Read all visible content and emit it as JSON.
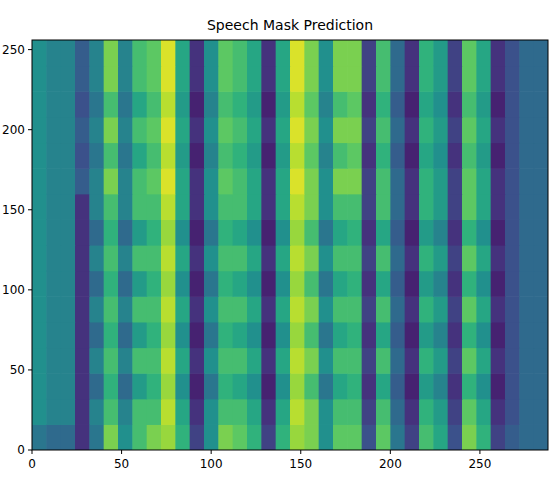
{
  "chart_data": {
    "type": "heatmap",
    "title": "Speech Mask Prediction",
    "xlim": [
      0,
      288
    ],
    "ylim": [
      0,
      256
    ],
    "xticks": [
      0,
      50,
      100,
      150,
      200,
      250
    ],
    "yticks": [
      0,
      50,
      100,
      150,
      200,
      250
    ],
    "color": "viridis",
    "zlim": [
      0,
      1
    ],
    "x_edges": [
      0,
      8,
      16,
      24,
      32,
      40,
      48,
      56,
      64,
      72,
      80,
      88,
      96,
      104,
      112,
      120,
      128,
      136,
      144,
      152,
      160,
      168,
      176,
      184,
      192,
      200,
      208,
      216,
      224,
      232,
      240,
      248,
      256,
      264,
      272,
      280,
      288
    ],
    "y_edges": [
      0,
      16,
      32,
      48,
      64,
      80,
      96,
      112,
      128,
      144,
      160,
      176,
      192,
      208,
      224,
      240,
      256
    ],
    "values": [
      [
        0.4,
        0.35,
        0.35,
        0.15,
        0.4,
        0.8,
        0.5,
        0.7,
        0.8,
        0.85,
        0.65,
        0.2,
        0.5,
        0.8,
        0.75,
        0.65,
        0.2,
        0.65,
        0.85,
        0.8,
        0.5,
        0.75,
        0.75,
        0.25,
        0.75,
        0.4,
        0.2,
        0.7,
        0.6,
        0.25,
        0.8,
        0.65,
        0.2,
        0.3,
        0.35,
        0.35
      ],
      [
        0.5,
        0.45,
        0.45,
        0.15,
        0.45,
        0.7,
        0.45,
        0.7,
        0.7,
        0.9,
        0.6,
        0.15,
        0.5,
        0.7,
        0.7,
        0.6,
        0.15,
        0.6,
        0.9,
        0.8,
        0.5,
        0.7,
        0.7,
        0.2,
        0.7,
        0.35,
        0.15,
        0.65,
        0.55,
        0.2,
        0.75,
        0.6,
        0.15,
        0.25,
        0.35,
        0.35
      ],
      [
        0.5,
        0.45,
        0.45,
        0.15,
        0.35,
        0.65,
        0.35,
        0.55,
        0.65,
        0.85,
        0.5,
        0.1,
        0.4,
        0.65,
        0.6,
        0.5,
        0.1,
        0.5,
        0.85,
        0.7,
        0.4,
        0.6,
        0.65,
        0.15,
        0.6,
        0.3,
        0.1,
        0.55,
        0.45,
        0.15,
        0.65,
        0.5,
        0.1,
        0.25,
        0.35,
        0.35
      ],
      [
        0.5,
        0.45,
        0.45,
        0.15,
        0.45,
        0.7,
        0.45,
        0.7,
        0.7,
        0.9,
        0.6,
        0.15,
        0.5,
        0.7,
        0.7,
        0.6,
        0.15,
        0.6,
        0.9,
        0.8,
        0.5,
        0.7,
        0.7,
        0.2,
        0.7,
        0.35,
        0.15,
        0.65,
        0.55,
        0.2,
        0.75,
        0.6,
        0.15,
        0.25,
        0.35,
        0.35
      ],
      [
        0.5,
        0.45,
        0.45,
        0.15,
        0.35,
        0.65,
        0.35,
        0.55,
        0.65,
        0.85,
        0.5,
        0.1,
        0.4,
        0.65,
        0.6,
        0.5,
        0.1,
        0.5,
        0.85,
        0.7,
        0.4,
        0.6,
        0.65,
        0.15,
        0.6,
        0.3,
        0.1,
        0.55,
        0.45,
        0.15,
        0.65,
        0.5,
        0.1,
        0.25,
        0.35,
        0.35
      ],
      [
        0.5,
        0.45,
        0.45,
        0.15,
        0.45,
        0.7,
        0.45,
        0.7,
        0.7,
        0.9,
        0.6,
        0.15,
        0.5,
        0.7,
        0.7,
        0.6,
        0.15,
        0.6,
        0.9,
        0.8,
        0.5,
        0.7,
        0.7,
        0.2,
        0.7,
        0.35,
        0.15,
        0.65,
        0.55,
        0.2,
        0.75,
        0.6,
        0.15,
        0.25,
        0.35,
        0.35
      ],
      [
        0.5,
        0.45,
        0.45,
        0.15,
        0.35,
        0.65,
        0.35,
        0.55,
        0.65,
        0.85,
        0.5,
        0.1,
        0.4,
        0.65,
        0.6,
        0.5,
        0.1,
        0.5,
        0.85,
        0.7,
        0.4,
        0.6,
        0.65,
        0.15,
        0.6,
        0.3,
        0.1,
        0.55,
        0.45,
        0.15,
        0.65,
        0.5,
        0.1,
        0.25,
        0.35,
        0.35
      ],
      [
        0.5,
        0.45,
        0.45,
        0.15,
        0.45,
        0.7,
        0.45,
        0.7,
        0.7,
        0.9,
        0.6,
        0.15,
        0.5,
        0.7,
        0.7,
        0.6,
        0.15,
        0.6,
        0.9,
        0.8,
        0.5,
        0.7,
        0.7,
        0.2,
        0.7,
        0.35,
        0.15,
        0.65,
        0.55,
        0.2,
        0.75,
        0.6,
        0.15,
        0.25,
        0.35,
        0.35
      ],
      [
        0.5,
        0.45,
        0.45,
        0.15,
        0.35,
        0.65,
        0.35,
        0.55,
        0.65,
        0.85,
        0.5,
        0.1,
        0.4,
        0.65,
        0.6,
        0.5,
        0.1,
        0.5,
        0.85,
        0.7,
        0.4,
        0.6,
        0.65,
        0.15,
        0.6,
        0.3,
        0.1,
        0.55,
        0.45,
        0.15,
        0.65,
        0.5,
        0.1,
        0.25,
        0.35,
        0.35
      ],
      [
        0.5,
        0.45,
        0.45,
        0.15,
        0.45,
        0.7,
        0.45,
        0.7,
        0.7,
        0.9,
        0.6,
        0.15,
        0.5,
        0.7,
        0.7,
        0.6,
        0.15,
        0.6,
        0.9,
        0.8,
        0.5,
        0.7,
        0.7,
        0.2,
        0.7,
        0.35,
        0.15,
        0.65,
        0.55,
        0.2,
        0.75,
        0.6,
        0.15,
        0.25,
        0.35,
        0.35
      ],
      [
        0.5,
        0.45,
        0.45,
        0.3,
        0.45,
        0.8,
        0.45,
        0.7,
        0.75,
        0.95,
        0.6,
        0.15,
        0.5,
        0.75,
        0.7,
        0.6,
        0.15,
        0.6,
        0.95,
        0.8,
        0.5,
        0.8,
        0.8,
        0.2,
        0.7,
        0.35,
        0.15,
        0.65,
        0.55,
        0.2,
        0.75,
        0.6,
        0.15,
        0.25,
        0.35,
        0.35
      ],
      [
        0.5,
        0.45,
        0.45,
        0.25,
        0.4,
        0.7,
        0.4,
        0.6,
        0.7,
        0.9,
        0.55,
        0.1,
        0.45,
        0.7,
        0.65,
        0.55,
        0.1,
        0.55,
        0.9,
        0.75,
        0.45,
        0.7,
        0.75,
        0.15,
        0.65,
        0.3,
        0.1,
        0.6,
        0.5,
        0.15,
        0.7,
        0.55,
        0.1,
        0.25,
        0.35,
        0.35
      ],
      [
        0.5,
        0.45,
        0.45,
        0.3,
        0.45,
        0.8,
        0.45,
        0.7,
        0.75,
        0.95,
        0.6,
        0.15,
        0.5,
        0.75,
        0.7,
        0.6,
        0.15,
        0.6,
        0.95,
        0.8,
        0.5,
        0.8,
        0.8,
        0.2,
        0.7,
        0.35,
        0.15,
        0.65,
        0.55,
        0.2,
        0.75,
        0.6,
        0.15,
        0.25,
        0.35,
        0.35
      ],
      [
        0.5,
        0.45,
        0.45,
        0.25,
        0.4,
        0.7,
        0.4,
        0.6,
        0.7,
        0.9,
        0.55,
        0.1,
        0.45,
        0.7,
        0.65,
        0.55,
        0.1,
        0.55,
        0.9,
        0.75,
        0.45,
        0.7,
        0.75,
        0.15,
        0.65,
        0.3,
        0.1,
        0.6,
        0.5,
        0.15,
        0.7,
        0.55,
        0.1,
        0.25,
        0.35,
        0.35
      ],
      [
        0.5,
        0.45,
        0.45,
        0.3,
        0.45,
        0.8,
        0.45,
        0.7,
        0.75,
        0.95,
        0.6,
        0.15,
        0.5,
        0.75,
        0.7,
        0.6,
        0.15,
        0.6,
        0.95,
        0.8,
        0.5,
        0.8,
        0.8,
        0.2,
        0.7,
        0.35,
        0.15,
        0.65,
        0.55,
        0.2,
        0.75,
        0.6,
        0.15,
        0.25,
        0.35,
        0.35
      ],
      [
        0.5,
        0.45,
        0.45,
        0.3,
        0.45,
        0.8,
        0.45,
        0.7,
        0.75,
        0.95,
        0.6,
        0.15,
        0.5,
        0.75,
        0.7,
        0.6,
        0.15,
        0.6,
        0.95,
        0.8,
        0.5,
        0.8,
        0.8,
        0.2,
        0.7,
        0.35,
        0.15,
        0.65,
        0.55,
        0.2,
        0.75,
        0.6,
        0.15,
        0.25,
        0.35,
        0.35
      ]
    ]
  }
}
